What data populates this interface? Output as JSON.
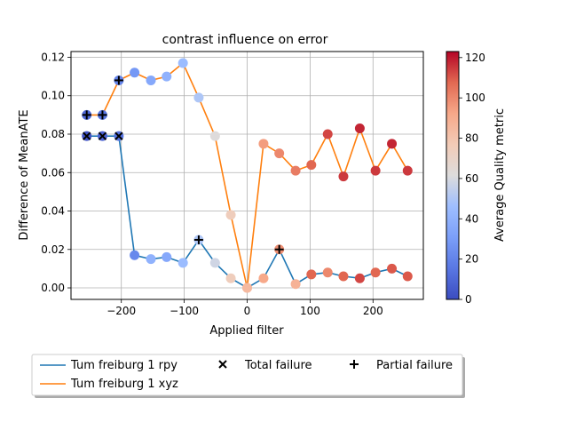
{
  "chart_data": {
    "type": "scatter",
    "title": "contrast influence on error",
    "xlabel": "Applied filter",
    "ylabel": "Difference of MeanATE",
    "xlim": [
      -280,
      280
    ],
    "ylim": [
      -0.006,
      0.123
    ],
    "xticks": [
      -200,
      -100,
      0,
      100,
      200
    ],
    "xtick_labels": [
      "−200",
      "−100",
      "0",
      "100",
      "200"
    ],
    "yticks": [
      0.0,
      0.02,
      0.04,
      0.06,
      0.08,
      0.1,
      0.12
    ],
    "ytick_labels": [
      "0.00",
      "0.02",
      "0.04",
      "0.06",
      "0.08",
      "0.10",
      "0.12"
    ],
    "grid": true,
    "colorbar": {
      "label": "Average Quality metric",
      "min": 0,
      "max": 123,
      "ticks": [
        0,
        20,
        40,
        60,
        80,
        100,
        120
      ],
      "tick_labels": [
        "0",
        "20",
        "40",
        "60",
        "80",
        "100",
        "120"
      ],
      "colormap": "coolwarm"
    },
    "series": [
      {
        "name": "Tum freiburg 1 rpy",
        "color": "#1f77b4",
        "x": [
          -255,
          -230,
          -204,
          -179,
          -153,
          -128,
          -102,
          -77,
          -51,
          -26,
          0,
          26,
          51,
          77,
          102,
          128,
          153,
          179,
          204,
          230,
          255
        ],
        "y": [
          0.079,
          0.079,
          0.079,
          0.017,
          0.015,
          0.016,
          0.013,
          0.025,
          0.013,
          0.005,
          0.0,
          0.005,
          0.02,
          0.002,
          0.007,
          0.008,
          0.006,
          0.005,
          0.008,
          0.01,
          0.006
        ],
        "quality": [
          3,
          8,
          14,
          22,
          40,
          35,
          45,
          50,
          58,
          75,
          85,
          92,
          98,
          88,
          108,
          100,
          108,
          113,
          108,
          110,
          110
        ]
      },
      {
        "name": "Tum freiburg 1 xyz",
        "color": "#ff7f0e",
        "x": [
          -255,
          -230,
          -204,
          -179,
          -153,
          -128,
          -102,
          -77,
          -51,
          -26,
          0,
          26,
          51,
          77,
          102,
          128,
          153,
          179,
          204,
          230,
          255
        ],
        "y": [
          0.09,
          0.09,
          0.108,
          0.112,
          0.108,
          0.11,
          0.117,
          0.099,
          0.079,
          0.038,
          0.0,
          0.075,
          0.07,
          0.061,
          0.064,
          0.08,
          0.058,
          0.083,
          0.061,
          0.075,
          0.061
        ],
        "quality": [
          10,
          15,
          20,
          28,
          35,
          40,
          45,
          50,
          62,
          75,
          85,
          95,
          100,
          103,
          108,
          113,
          115,
          118,
          115,
          118,
          115
        ]
      }
    ],
    "total_failure": {
      "name": "Total failure",
      "x": [
        -255,
        -230,
        -204
      ],
      "y": [
        0.079,
        0.079,
        0.079
      ]
    },
    "partial_failure": {
      "name": "Partial failure",
      "x": [
        -255,
        -230,
        -204,
        -77,
        51
      ],
      "y": [
        0.09,
        0.09,
        0.108,
        0.025,
        0.02
      ]
    },
    "legend": {
      "placement": "bottom",
      "entries": [
        "Tum freiburg 1 rpy",
        "Tum freiburg 1 xyz",
        "Total failure",
        "Partial failure"
      ]
    }
  }
}
